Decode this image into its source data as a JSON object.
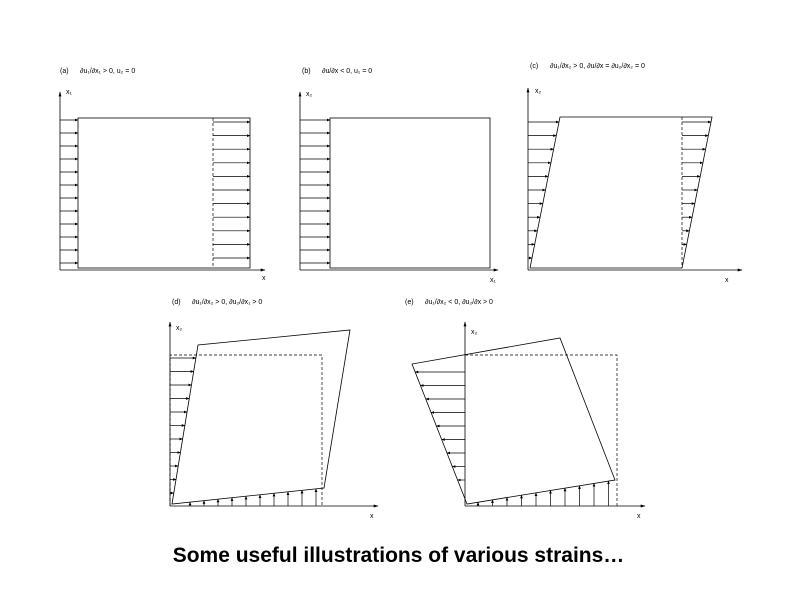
{
  "caption": "Some useful illustrations of various strains…",
  "panels": [
    {
      "id": "a",
      "label": "(a)",
      "condition": "∂u₁/∂x₁ > 0, u₂ = 0",
      "x_axis": "x",
      "y_axis": "x₁"
    },
    {
      "id": "b",
      "label": "(b)",
      "condition": "∂u/∂x < 0, u₁ = 0",
      "x_axis": "x₁",
      "y_axis": "x₂"
    },
    {
      "id": "c",
      "label": "(c)",
      "condition": "∂u₁/∂x₂ > 0, ∂u/∂x = ∂u₂/∂x₂ = 0",
      "x_axis": "x",
      "y_axis": "x₂"
    },
    {
      "id": "d",
      "label": "(d)",
      "condition": "∂u₁/∂x₂ > 0, ∂u₂/∂x₁ > 0",
      "x_axis": "x",
      "y_axis": "x₂"
    },
    {
      "id": "e",
      "label": "(e)",
      "condition": "∂u₁/∂x₂ < 0, ∂u₂/∂x > 0",
      "x_axis": "x",
      "y_axis": "x₂"
    }
  ]
}
